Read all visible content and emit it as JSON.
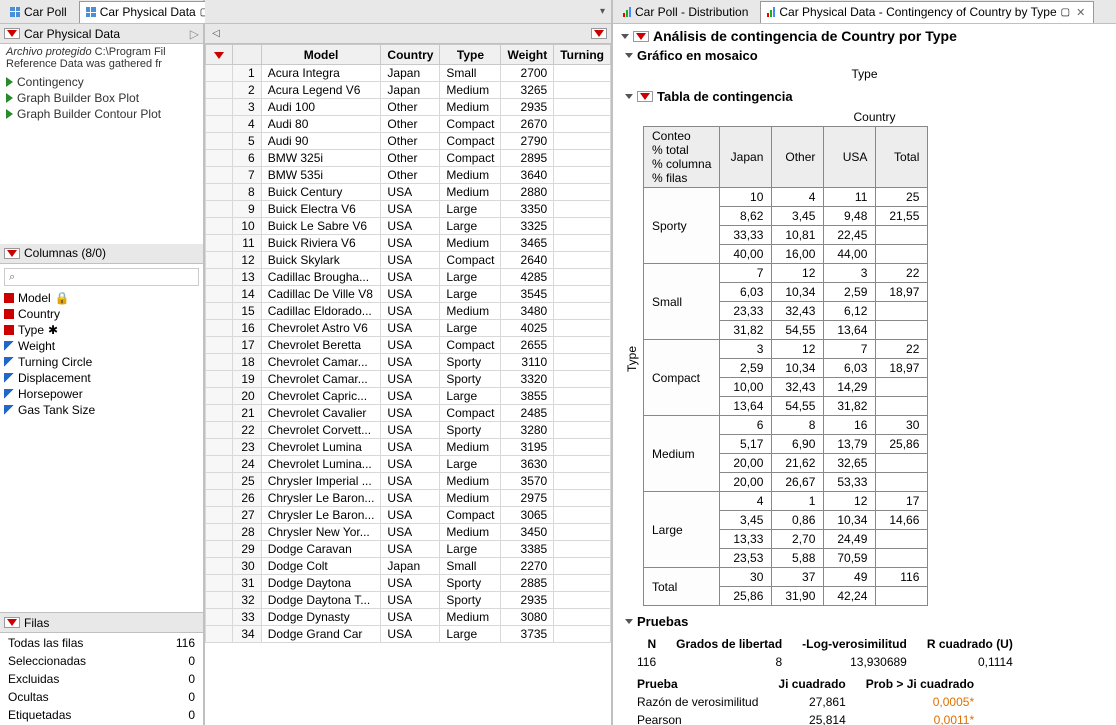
{
  "tabs_left": [
    {
      "label": "Car Poll",
      "active": false
    },
    {
      "label": "Car Physical Data",
      "active": true
    }
  ],
  "tabs_right": [
    {
      "label": "Car Poll - Distribution",
      "active": false
    },
    {
      "label": "Car Physical Data - Contingency of Country by Type",
      "active": true
    }
  ],
  "left_panel": {
    "title": "Car Physical Data",
    "protected": "Archivo protegido",
    "path": "C:\\Program Fil",
    "reference": "Reference  Data was gathered fr",
    "scripts": [
      "Contingency",
      "Graph Builder Box Plot",
      "Graph Builder Contour Plot"
    ],
    "columns_header": "Columnas (8/0)",
    "columns": [
      {
        "name": "Model",
        "type": "nom",
        "suffix": "🔒"
      },
      {
        "name": "Country",
        "type": "nom"
      },
      {
        "name": "Type",
        "type": "nom",
        "suffix": "✱"
      },
      {
        "name": "Weight",
        "type": "cont"
      },
      {
        "name": "Turning Circle",
        "type": "cont"
      },
      {
        "name": "Displacement",
        "type": "cont"
      },
      {
        "name": "Horsepower",
        "type": "cont"
      },
      {
        "name": "Gas Tank Size",
        "type": "cont"
      }
    ],
    "rows_header": "Filas",
    "rows_summary": [
      {
        "label": "Todas las filas",
        "value": "116"
      },
      {
        "label": "Seleccionadas",
        "value": "0"
      },
      {
        "label": "Excluidas",
        "value": "0"
      },
      {
        "label": "Ocultas",
        "value": "0"
      },
      {
        "label": "Etiquetadas",
        "value": "0"
      }
    ]
  },
  "data_table": {
    "columns": [
      "Model",
      "Country",
      "Type",
      "Weight",
      "Turning"
    ],
    "rows": [
      [
        "Acura Integra",
        "Japan",
        "Small",
        "2700",
        ""
      ],
      [
        "Acura Legend V6",
        "Japan",
        "Medium",
        "3265",
        ""
      ],
      [
        "Audi 100",
        "Other",
        "Medium",
        "2935",
        ""
      ],
      [
        "Audi 80",
        "Other",
        "Compact",
        "2670",
        ""
      ],
      [
        "Audi 90",
        "Other",
        "Compact",
        "2790",
        ""
      ],
      [
        "BMW 325i",
        "Other",
        "Compact",
        "2895",
        ""
      ],
      [
        "BMW 535i",
        "Other",
        "Medium",
        "3640",
        ""
      ],
      [
        "Buick Century",
        "USA",
        "Medium",
        "2880",
        ""
      ],
      [
        "Buick Electra V6",
        "USA",
        "Large",
        "3350",
        ""
      ],
      [
        "Buick Le Sabre V6",
        "USA",
        "Large",
        "3325",
        ""
      ],
      [
        "Buick Riviera V6",
        "USA",
        "Medium",
        "3465",
        ""
      ],
      [
        "Buick Skylark",
        "USA",
        "Compact",
        "2640",
        ""
      ],
      [
        "Cadillac Brougha...",
        "USA",
        "Large",
        "4285",
        ""
      ],
      [
        "Cadillac De Ville V8",
        "USA",
        "Large",
        "3545",
        ""
      ],
      [
        "Cadillac Eldorado...",
        "USA",
        "Medium",
        "3480",
        ""
      ],
      [
        "Chevrolet Astro V6",
        "USA",
        "Large",
        "4025",
        ""
      ],
      [
        "Chevrolet Beretta",
        "USA",
        "Compact",
        "2655",
        ""
      ],
      [
        "Chevrolet Camar...",
        "USA",
        "Sporty",
        "3110",
        ""
      ],
      [
        "Chevrolet Camar...",
        "USA",
        "Sporty",
        "3320",
        ""
      ],
      [
        "Chevrolet Capric...",
        "USA",
        "Large",
        "3855",
        ""
      ],
      [
        "Chevrolet Cavalier",
        "USA",
        "Compact",
        "2485",
        ""
      ],
      [
        "Chevrolet Corvett...",
        "USA",
        "Sporty",
        "3280",
        ""
      ],
      [
        "Chevrolet Lumina",
        "USA",
        "Medium",
        "3195",
        ""
      ],
      [
        "Chevrolet Lumina...",
        "USA",
        "Large",
        "3630",
        ""
      ],
      [
        "Chrysler Imperial ...",
        "USA",
        "Medium",
        "3570",
        ""
      ],
      [
        "Chrysler Le Baron...",
        "USA",
        "Medium",
        "2975",
        ""
      ],
      [
        "Chrysler Le Baron...",
        "USA",
        "Compact",
        "3065",
        ""
      ],
      [
        "Chrysler New Yor...",
        "USA",
        "Medium",
        "3450",
        ""
      ],
      [
        "Dodge Caravan",
        "USA",
        "Large",
        "3385",
        ""
      ],
      [
        "Dodge Colt",
        "Japan",
        "Small",
        "2270",
        ""
      ],
      [
        "Dodge Daytona",
        "USA",
        "Sporty",
        "2885",
        ""
      ],
      [
        "Dodge Daytona T...",
        "USA",
        "Sporty",
        "2935",
        ""
      ],
      [
        "Dodge Dynasty",
        "USA",
        "Medium",
        "3080",
        ""
      ],
      [
        "Dodge Grand Car",
        "USA",
        "Large",
        "3735",
        ""
      ]
    ]
  },
  "analysis": {
    "title": "Análisis de contingencia de Country por Type",
    "mosaic_header": "Gráfico en mosaico",
    "mosaic_axis": "Type",
    "ct_header": "Tabla de contingencia",
    "ct_top_label": "Country",
    "ct_side_label": "Type",
    "ct_stat_labels": [
      "Conteo",
      "% total",
      "% columna",
      "% filas"
    ],
    "ct_col_headers": [
      "Japan",
      "Other",
      "USA",
      "Total"
    ],
    "ct_rows": [
      {
        "label": "Sporty",
        "cells": [
          [
            "10",
            "8,62",
            "33,33",
            "40,00"
          ],
          [
            "4",
            "3,45",
            "10,81",
            "16,00"
          ],
          [
            "11",
            "9,48",
            "22,45",
            "44,00"
          ],
          [
            "25",
            "21,55",
            "",
            ""
          ]
        ]
      },
      {
        "label": "Small",
        "cells": [
          [
            "7",
            "6,03",
            "23,33",
            "31,82"
          ],
          [
            "12",
            "10,34",
            "32,43",
            "54,55"
          ],
          [
            "3",
            "2,59",
            "6,12",
            "13,64"
          ],
          [
            "22",
            "18,97",
            "",
            ""
          ]
        ]
      },
      {
        "label": "Compact",
        "cells": [
          [
            "3",
            "2,59",
            "10,00",
            "13,64"
          ],
          [
            "12",
            "10,34",
            "32,43",
            "54,55"
          ],
          [
            "7",
            "6,03",
            "14,29",
            "31,82"
          ],
          [
            "22",
            "18,97",
            "",
            ""
          ]
        ]
      },
      {
        "label": "Medium",
        "cells": [
          [
            "6",
            "5,17",
            "20,00",
            "20,00"
          ],
          [
            "8",
            "6,90",
            "21,62",
            "26,67"
          ],
          [
            "16",
            "13,79",
            "32,65",
            "53,33"
          ],
          [
            "30",
            "25,86",
            "",
            ""
          ]
        ]
      },
      {
        "label": "Large",
        "cells": [
          [
            "4",
            "3,45",
            "13,33",
            "23,53"
          ],
          [
            "1",
            "0,86",
            "2,70",
            "5,88"
          ],
          [
            "12",
            "10,34",
            "24,49",
            "70,59"
          ],
          [
            "17",
            "14,66",
            "",
            ""
          ]
        ]
      }
    ],
    "ct_total_row": {
      "label": "Total",
      "cells": [
        [
          "30",
          "25,86"
        ],
        [
          "37",
          "31,90"
        ],
        [
          "49",
          "42,24"
        ],
        [
          "116",
          ""
        ]
      ]
    },
    "tests_header": "Pruebas",
    "tests_summary": {
      "headers": [
        "N",
        "Grados de libertad",
        "-Log-verosimilitud",
        "R cuadrado (U)"
      ],
      "values": [
        "116",
        "8",
        "13,930689",
        "0,1114"
      ]
    },
    "tests_table": {
      "headers": [
        "Prueba",
        "Ji cuadrado",
        "Prob > Ji cuadrado"
      ],
      "rows": [
        {
          "label": "Razón de verosimilitud",
          "chi": "27,861",
          "p": "0,0005*"
        },
        {
          "label": "Pearson",
          "chi": "25,814",
          "p": "0,0011*"
        }
      ]
    }
  }
}
